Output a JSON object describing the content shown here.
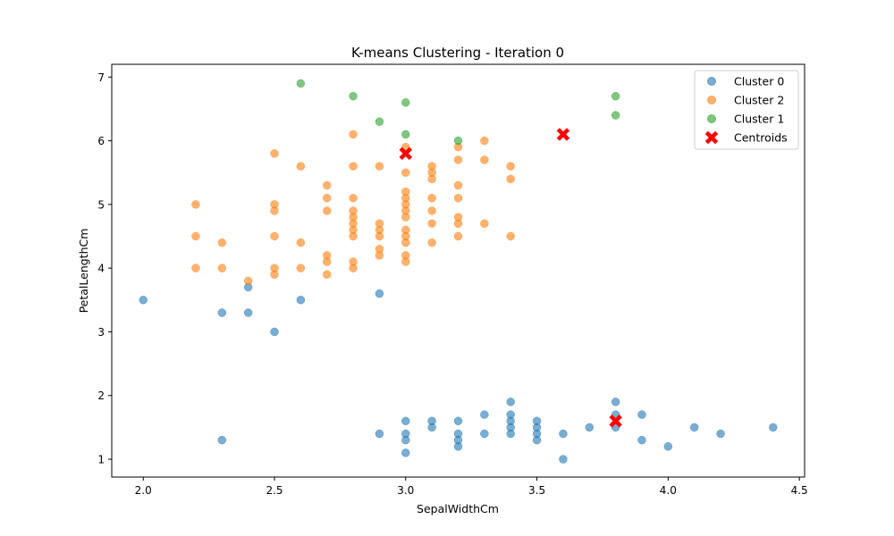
{
  "chart_data": {
    "type": "scatter",
    "title": "K-means Clustering - Iteration 0",
    "xlabel": "SepalWidthCm",
    "ylabel": "PetalLengthCm",
    "xlim": [
      1.88,
      4.52
    ],
    "ylim": [
      0.72,
      7.2
    ],
    "xticks": [
      2.0,
      2.5,
      3.0,
      3.5,
      4.0,
      4.5
    ],
    "xtick_labels": [
      "2.0",
      "2.5",
      "3.0",
      "3.5",
      "4.0",
      "4.5"
    ],
    "yticks": [
      1,
      2,
      3,
      4,
      5,
      6,
      7
    ],
    "ytick_labels": [
      "1",
      "2",
      "3",
      "4",
      "5",
      "6",
      "7"
    ],
    "grid": false,
    "legend_position": "top-right",
    "series": [
      {
        "name": "Cluster 0",
        "color": "#1f77b4",
        "marker": "circle",
        "points": [
          [
            2.0,
            3.5
          ],
          [
            2.3,
            3.3
          ],
          [
            2.4,
            3.3
          ],
          [
            2.4,
            3.7
          ],
          [
            2.5,
            3.0
          ],
          [
            2.6,
            3.5
          ],
          [
            2.9,
            3.6
          ],
          [
            2.3,
            1.3
          ],
          [
            2.9,
            1.4
          ],
          [
            3.0,
            1.1
          ],
          [
            3.0,
            1.3
          ],
          [
            3.0,
            1.4
          ],
          [
            3.0,
            1.6
          ],
          [
            3.1,
            1.5
          ],
          [
            3.1,
            1.6
          ],
          [
            3.2,
            1.2
          ],
          [
            3.2,
            1.3
          ],
          [
            3.2,
            1.4
          ],
          [
            3.2,
            1.6
          ],
          [
            3.3,
            1.4
          ],
          [
            3.3,
            1.7
          ],
          [
            3.4,
            1.4
          ],
          [
            3.4,
            1.5
          ],
          [
            3.4,
            1.6
          ],
          [
            3.4,
            1.7
          ],
          [
            3.4,
            1.9
          ],
          [
            3.5,
            1.3
          ],
          [
            3.5,
            1.4
          ],
          [
            3.5,
            1.5
          ],
          [
            3.5,
            1.6
          ],
          [
            3.6,
            1.0
          ],
          [
            3.6,
            1.4
          ],
          [
            3.7,
            1.5
          ],
          [
            3.8,
            1.5
          ],
          [
            3.8,
            1.7
          ],
          [
            3.8,
            1.9
          ],
          [
            3.9,
            1.3
          ],
          [
            3.9,
            1.7
          ],
          [
            4.0,
            1.2
          ],
          [
            4.1,
            1.5
          ],
          [
            4.2,
            1.4
          ],
          [
            4.4,
            1.5
          ]
        ]
      },
      {
        "name": "Cluster 2",
        "color": "#ff7f0e",
        "marker": "circle",
        "points": [
          [
            2.2,
            5.0
          ],
          [
            2.2,
            4.5
          ],
          [
            2.2,
            4.0
          ],
          [
            2.3,
            4.4
          ],
          [
            2.3,
            4.0
          ],
          [
            2.4,
            3.8
          ],
          [
            2.5,
            5.8
          ],
          [
            2.5,
            5.0
          ],
          [
            2.5,
            4.9
          ],
          [
            2.5,
            4.5
          ],
          [
            2.5,
            4.0
          ],
          [
            2.5,
            3.9
          ],
          [
            2.6,
            5.6
          ],
          [
            2.6,
            4.4
          ],
          [
            2.6,
            4.0
          ],
          [
            2.7,
            5.3
          ],
          [
            2.7,
            5.1
          ],
          [
            2.7,
            4.9
          ],
          [
            2.7,
            4.2
          ],
          [
            2.7,
            4.1
          ],
          [
            2.7,
            3.9
          ],
          [
            2.8,
            6.1
          ],
          [
            2.8,
            5.6
          ],
          [
            2.8,
            5.1
          ],
          [
            2.8,
            4.9
          ],
          [
            2.8,
            4.8
          ],
          [
            2.8,
            4.7
          ],
          [
            2.8,
            4.6
          ],
          [
            2.8,
            4.5
          ],
          [
            2.8,
            4.1
          ],
          [
            2.8,
            4.0
          ],
          [
            2.9,
            5.6
          ],
          [
            2.9,
            4.7
          ],
          [
            2.9,
            4.6
          ],
          [
            2.9,
            4.5
          ],
          [
            2.9,
            4.3
          ],
          [
            2.9,
            4.2
          ],
          [
            3.0,
            5.9
          ],
          [
            3.0,
            5.5
          ],
          [
            3.0,
            5.2
          ],
          [
            3.0,
            5.1
          ],
          [
            3.0,
            5.0
          ],
          [
            3.0,
            4.9
          ],
          [
            3.0,
            4.8
          ],
          [
            3.0,
            4.6
          ],
          [
            3.0,
            4.5
          ],
          [
            3.0,
            4.4
          ],
          [
            3.0,
            4.2
          ],
          [
            3.0,
            4.1
          ],
          [
            3.1,
            5.6
          ],
          [
            3.1,
            5.5
          ],
          [
            3.1,
            5.4
          ],
          [
            3.1,
            5.1
          ],
          [
            3.1,
            4.9
          ],
          [
            3.1,
            4.7
          ],
          [
            3.1,
            4.4
          ],
          [
            3.2,
            5.9
          ],
          [
            3.2,
            5.7
          ],
          [
            3.2,
            5.3
          ],
          [
            3.2,
            5.1
          ],
          [
            3.2,
            4.8
          ],
          [
            3.2,
            4.7
          ],
          [
            3.2,
            4.5
          ],
          [
            3.3,
            6.0
          ],
          [
            3.3,
            5.7
          ],
          [
            3.3,
            4.7
          ],
          [
            3.4,
            5.6
          ],
          [
            3.4,
            5.4
          ],
          [
            3.4,
            4.5
          ]
        ]
      },
      {
        "name": "Cluster 1",
        "color": "#2ca02c",
        "marker": "circle",
        "points": [
          [
            2.6,
            6.9
          ],
          [
            2.8,
            6.7
          ],
          [
            2.9,
            6.3
          ],
          [
            3.0,
            6.6
          ],
          [
            3.0,
            6.1
          ],
          [
            3.2,
            6.0
          ],
          [
            3.8,
            6.7
          ],
          [
            3.8,
            6.4
          ]
        ]
      },
      {
        "name": "Centroids",
        "color": "#ff0000",
        "marker": "x",
        "points": [
          [
            3.0,
            5.8
          ],
          [
            3.6,
            6.1
          ],
          [
            3.8,
            1.6
          ]
        ]
      }
    ]
  }
}
